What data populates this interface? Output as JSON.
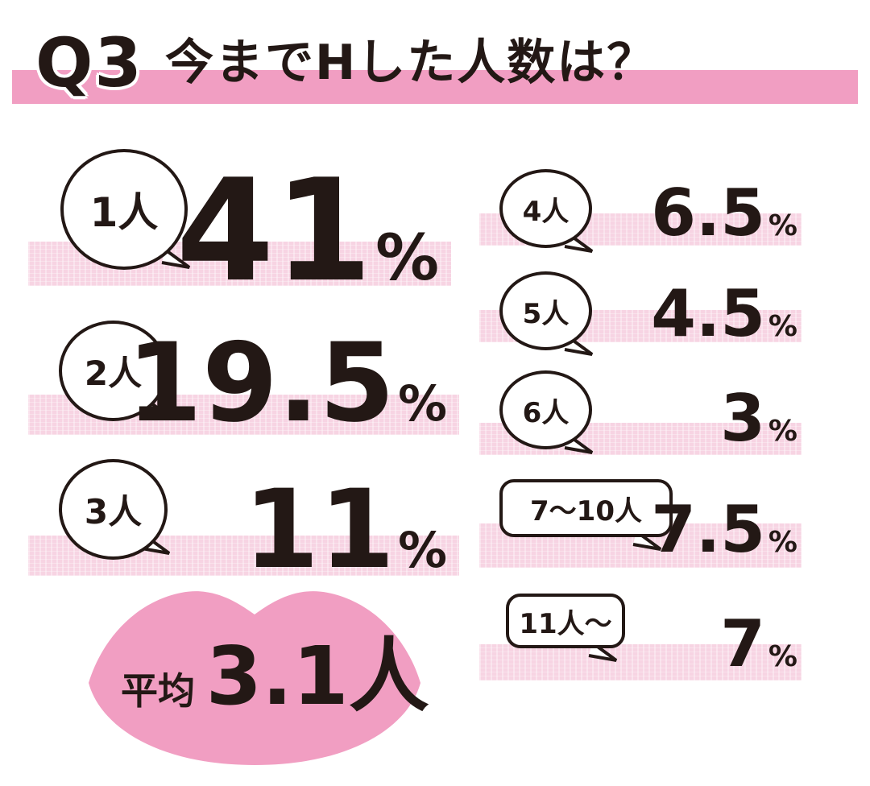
{
  "header": {
    "question": "Q3",
    "title": "今までHした人数は？"
  },
  "colors": {
    "pink": "#f19ec2",
    "stripe": "#f7d4e3",
    "text": "#231815"
  },
  "items": [
    {
      "label": "1人",
      "value": "41",
      "unit": "%"
    },
    {
      "label": "2人",
      "value": "19.5",
      "unit": "%"
    },
    {
      "label": "3人",
      "value": "11",
      "unit": "%"
    },
    {
      "label": "4人",
      "value": "6.5",
      "unit": "%"
    },
    {
      "label": "5人",
      "value": "4.5",
      "unit": "%"
    },
    {
      "label": "6人",
      "value": "3",
      "unit": "%"
    },
    {
      "label": "7〜10人",
      "value": "7.5",
      "unit": "%"
    },
    {
      "label": "11人〜",
      "value": "7",
      "unit": "%"
    }
  ],
  "average": {
    "label": "平均",
    "value": "3.1",
    "unit": "人"
  },
  "chart_data": {
    "type": "table",
    "title": "今までHした人数は？",
    "categories": [
      "1人",
      "2人",
      "3人",
      "4人",
      "5人",
      "6人",
      "7〜10人",
      "11人〜"
    ],
    "values": [
      41,
      19.5,
      11,
      6.5,
      4.5,
      3,
      7.5,
      7
    ],
    "unit": "%",
    "average": "3.1人"
  }
}
